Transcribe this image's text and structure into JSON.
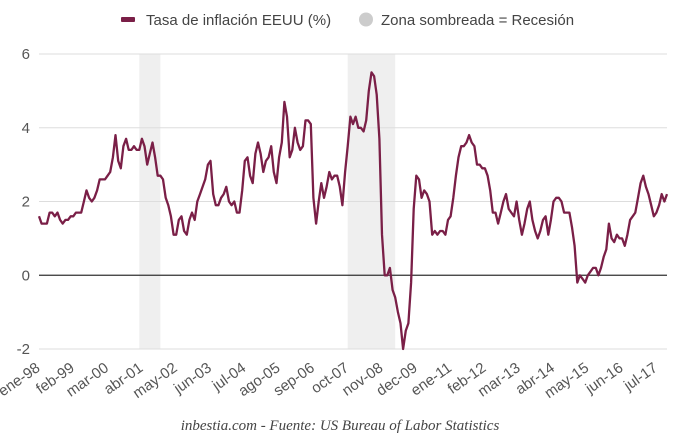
{
  "chart_data": {
    "type": "line",
    "title": "",
    "legend": [
      {
        "label": "Tasa de inflación EEUU (%)",
        "color": "#7a1f47",
        "kind": "line"
      },
      {
        "label": "Zona sombreada = Recesión",
        "color": "#cccccc",
        "kind": "dot"
      }
    ],
    "legend_placement": "top-center",
    "footer": "inbestia.com - Fuente: US Bureau of Labor Statistics",
    "ylim": [
      -2,
      6
    ],
    "yticks": [
      -2,
      0,
      2,
      4,
      6
    ],
    "grid": true,
    "start": "1998-01",
    "x_tick_labels": [
      "ene-98",
      "feb-99",
      "mar-00",
      "abr-01",
      "may-02",
      "jun-03",
      "jul-04",
      "ago-05",
      "sep-06",
      "oct-07",
      "nov-08",
      "dec-09",
      "ene-11",
      "feb-12",
      "mar-13",
      "abr-14",
      "may-15",
      "jun-16",
      "jul-17"
    ],
    "x_tick_step_months": 13,
    "recessions_month_index": [
      [
        38,
        46
      ],
      [
        117,
        135
      ]
    ],
    "colors": {
      "line": "#7a1f47",
      "recession": "#efefef",
      "grid": "#dddddd",
      "zero": "#333333"
    },
    "series": [
      {
        "name": "Tasa de inflación EEUU (%)",
        "values": [
          1.6,
          1.4,
          1.4,
          1.4,
          1.7,
          1.7,
          1.6,
          1.7,
          1.5,
          1.4,
          1.5,
          1.5,
          1.6,
          1.6,
          1.7,
          1.7,
          1.7,
          2.0,
          2.3,
          2.1,
          2.0,
          2.1,
          2.3,
          2.6,
          2.6,
          2.6,
          2.7,
          2.8,
          3.2,
          3.8,
          3.1,
          2.9,
          3.5,
          3.7,
          3.4,
          3.4,
          3.5,
          3.4,
          3.4,
          3.7,
          3.5,
          3.0,
          3.3,
          3.6,
          3.2,
          2.7,
          2.7,
          2.6,
          2.1,
          1.9,
          1.6,
          1.1,
          1.1,
          1.5,
          1.6,
          1.2,
          1.1,
          1.5,
          1.7,
          1.5,
          2.0,
          2.2,
          2.4,
          2.6,
          3.0,
          3.1,
          2.2,
          1.9,
          1.9,
          2.1,
          2.2,
          2.4,
          2.0,
          1.9,
          2.0,
          1.7,
          1.7,
          2.3,
          3.1,
          3.2,
          2.7,
          2.5,
          3.3,
          3.6,
          3.3,
          2.8,
          3.1,
          3.2,
          3.5,
          2.8,
          2.5,
          3.2,
          3.6,
          4.7,
          4.3,
          3.2,
          3.4,
          4.0,
          3.6,
          3.4,
          3.5,
          4.2,
          4.2,
          4.1,
          2.1,
          1.4,
          2.0,
          2.5,
          2.1,
          2.4,
          2.8,
          2.6,
          2.7,
          2.7,
          2.4,
          1.9,
          2.8,
          3.5,
          4.3,
          4.1,
          4.3,
          4.0,
          4.0,
          3.9,
          4.2,
          5.0,
          5.5,
          5.4,
          4.9,
          3.7,
          1.1,
          0.0,
          0.0,
          0.2,
          -0.4,
          -0.6,
          -1.0,
          -1.3,
          -2.0,
          -1.5,
          -1.3,
          -0.2,
          1.8,
          2.7,
          2.6,
          2.1,
          2.3,
          2.2,
          2.0,
          1.1,
          1.2,
          1.1,
          1.2,
          1.2,
          1.1,
          1.5,
          1.6,
          2.1,
          2.7,
          3.2,
          3.5,
          3.5,
          3.6,
          3.8,
          3.6,
          3.5,
          3.0,
          3.0,
          2.9,
          2.9,
          2.7,
          2.3,
          1.7,
          1.7,
          1.4,
          1.7,
          2.0,
          2.2,
          1.8,
          1.7,
          1.6,
          2.0,
          1.5,
          1.1,
          1.4,
          1.8,
          2.0,
          1.5,
          1.2,
          1.0,
          1.2,
          1.5,
          1.6,
          1.1,
          1.5,
          2.0,
          2.1,
          2.1,
          2.0,
          1.7,
          1.7,
          1.7,
          1.3,
          0.8,
          -0.2,
          0.0,
          -0.1,
          -0.2,
          0.0,
          0.1,
          0.2,
          0.2,
          0.0,
          0.2,
          0.5,
          0.7,
          1.4,
          1.0,
          0.9,
          1.1,
          1.0,
          1.0,
          0.8,
          1.1,
          1.5,
          1.6,
          1.7,
          2.1,
          2.5,
          2.7,
          2.4,
          2.2,
          1.9,
          1.6,
          1.7,
          1.9,
          2.2,
          2.0,
          2.2
        ]
      }
    ]
  }
}
